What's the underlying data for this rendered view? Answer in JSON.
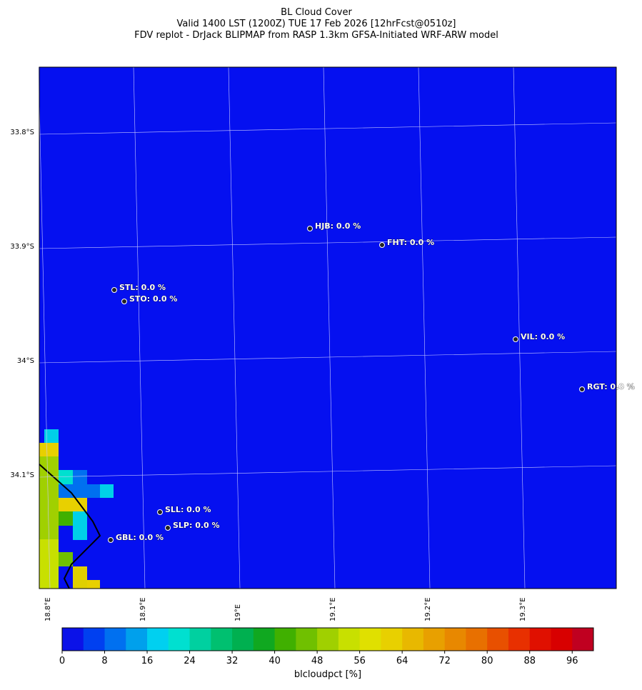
{
  "title_lines": [
    "BL Cloud Cover",
    "Valid 1400 LST (1200Z) TUE 17 Feb 2026 [12hrFcst@0510z]",
    "FDV replot - DrJack BLIPMAP from RASP 1.3km GFSA-Initiated WRF-ARW model"
  ],
  "map": {
    "background": "#0510f0",
    "lat_ticks": [
      {
        "value": -33.8,
        "label": "33.8°S"
      },
      {
        "value": -33.9,
        "label": "33.9°S"
      },
      {
        "value": -34.0,
        "label": "34°S"
      },
      {
        "value": -34.1,
        "label": "34.1°S"
      }
    ],
    "lon_ticks": [
      {
        "value": 18.8,
        "label": "18.8°E"
      },
      {
        "value": 18.9,
        "label": "18.9°E"
      },
      {
        "value": 19.0,
        "label": "19°E"
      },
      {
        "value": 19.1,
        "label": "19.1°E"
      },
      {
        "value": 19.2,
        "label": "19.2°E"
      },
      {
        "value": 19.3,
        "label": "19.3°E"
      }
    ],
    "stations": [
      "HJB: 0.0 %",
      "FHT: 0.0 %",
      "STL: 0.0 %",
      "STO: 0.0 %",
      "VIL: 0.0 %",
      "RGT: 0.0 %",
      "SLL: 0.0 %",
      "SLP: 0.0 %",
      "GBL: 0.0 %"
    ]
  },
  "colorbar": {
    "range": [
      0,
      100
    ],
    "ticks": [
      0,
      8,
      16,
      24,
      32,
      40,
      48,
      56,
      64,
      72,
      80,
      88,
      96
    ],
    "label": "blcloudpct [%]",
    "colors": [
      "#0b12e8",
      "#0040f0",
      "#0070f0",
      "#00a0ec",
      "#00d0f0",
      "#00e0d0",
      "#00d0a0",
      "#00c070",
      "#00b050",
      "#10a820",
      "#40b000",
      "#70c000",
      "#a0d000",
      "#c8e000",
      "#e0e000",
      "#e8d000",
      "#e8b800",
      "#e8a000",
      "#e88800",
      "#e87000",
      "#e85000",
      "#e83000",
      "#e01000",
      "#d80000",
      "#c00020"
    ]
  }
}
